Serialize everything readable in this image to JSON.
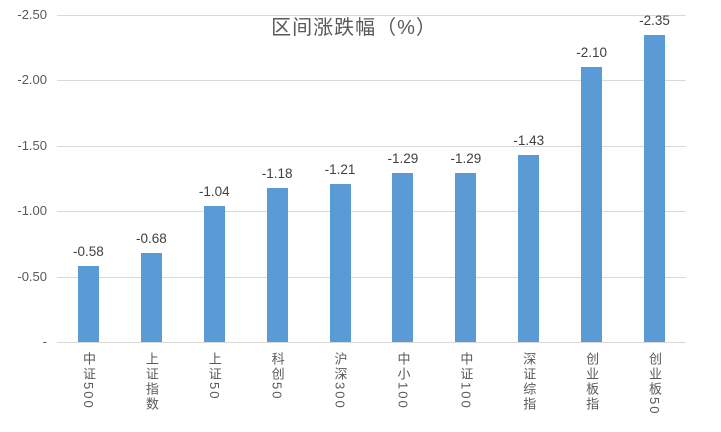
{
  "chart_data": {
    "type": "bar",
    "title": "区间涨跌幅（%）",
    "categories": [
      "中证500",
      "上证指数",
      "上证50",
      "科创50",
      "沪深300",
      "中小100",
      "中证100",
      "深证综指",
      "创业板指",
      "创业板50"
    ],
    "values": [
      -0.58,
      -0.68,
      -1.04,
      -1.18,
      -1.21,
      -1.29,
      -1.29,
      -1.43,
      -2.1,
      -2.35
    ],
    "data_labels": [
      "-0.58",
      "-0.68",
      "-1.04",
      "-1.18",
      "-1.21",
      "-1.29",
      "-1.29",
      "-1.43",
      "-2.10",
      "-2.35"
    ],
    "xlabel": "",
    "ylabel": "",
    "y_axis": {
      "inverted": true,
      "min": 0,
      "max": -2.5,
      "ticks": [
        {
          "label": "-",
          "value": 0.0
        },
        {
          "label": "-0.50",
          "value": 0.5
        },
        {
          "label": "-1.00",
          "value": 1.0
        },
        {
          "label": "-1.50",
          "value": 1.5
        },
        {
          "label": "-2.00",
          "value": 2.0
        },
        {
          "label": "-2.50",
          "value": 2.5
        }
      ]
    },
    "grid": true,
    "legend": "none",
    "colors": {
      "bar": "#5b9bd5",
      "gridline": "#d9d9d9",
      "title_text": "#595959",
      "axis_text": "#595959",
      "value_label_text": "#404040",
      "background": "#ffffff"
    }
  }
}
